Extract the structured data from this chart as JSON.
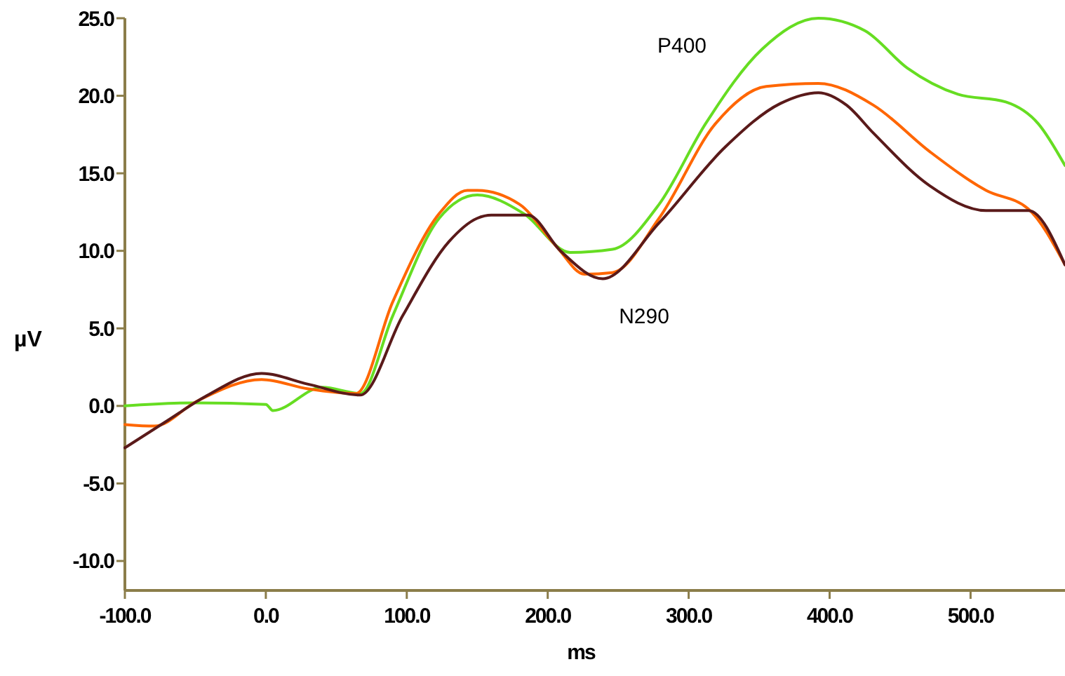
{
  "chart_data": {
    "type": "line",
    "xlabel": "ms",
    "ylabel": "µV",
    "xlim": [
      -100,
      567
    ],
    "ylim": [
      -11.9,
      25
    ],
    "xticks": [
      {
        "value": -100,
        "label": "-100.0"
      },
      {
        "value": 0,
        "label": "0.0"
      },
      {
        "value": 100,
        "label": "100.0"
      },
      {
        "value": 200,
        "label": "200.0"
      },
      {
        "value": 300,
        "label": "300.0"
      },
      {
        "value": 400,
        "label": "400.0"
      },
      {
        "value": 500,
        "label": "500.0"
      }
    ],
    "yticks": [
      {
        "value": -10,
        "label": "-10.0"
      },
      {
        "value": -5,
        "label": "-5.0"
      },
      {
        "value": 0,
        "label": "0.0"
      },
      {
        "value": 5,
        "label": "5.0"
      },
      {
        "value": 10,
        "label": "10.0"
      },
      {
        "value": 15,
        "label": "15.0"
      },
      {
        "value": 20,
        "label": "20.0"
      },
      {
        "value": 25,
        "label": "25.0"
      }
    ],
    "grid": false,
    "marker": "none",
    "line_style": "solid",
    "annotations": [
      "P400",
      "N290"
    ],
    "series": [
      {
        "color": "#66dd22",
        "x": [
          -100,
          -50,
          0,
          5,
          40,
          67,
          90,
          123,
          150,
          183,
          216,
          246,
          279,
          312,
          352,
          392,
          425,
          455,
          491,
          525,
          548,
          567
        ],
        "values": [
          0,
          0.2,
          0.1,
          -0.3,
          1.2,
          0.8,
          5.8,
          12.1,
          13.6,
          12.4,
          9.9,
          10.1,
          13,
          18.2,
          23,
          25,
          24.2,
          21.8,
          20.1,
          19.6,
          18.2,
          15.5
        ]
      },
      {
        "color": "#ff6600",
        "x": [
          -100,
          -79,
          -49,
          -3,
          30,
          64,
          90,
          123,
          143,
          150,
          180,
          206,
          226,
          246,
          279,
          319,
          355,
          392,
          431,
          471,
          511,
          541,
          567
        ],
        "values": [
          -1.2,
          -1.3,
          0.3,
          1.7,
          1.1,
          0.8,
          6.7,
          12.4,
          13.9,
          13.9,
          13,
          10.3,
          8.5,
          8.6,
          12.1,
          18.2,
          20.6,
          20.8,
          19.4,
          16.4,
          13.9,
          12.7,
          9.1
        ]
      },
      {
        "color": "#5a1a1a",
        "x": [
          -100,
          -69,
          -43,
          -3,
          30,
          67,
          97,
          130,
          150,
          160,
          186,
          209,
          239,
          279,
          326,
          365,
          392,
          412,
          431,
          471,
          511,
          541,
          567
        ],
        "values": [
          -2.7,
          -0.9,
          0.6,
          2.1,
          1.4,
          0.7,
          5.8,
          10.6,
          12.1,
          12.3,
          12.3,
          10,
          8.2,
          11.8,
          16.7,
          19.5,
          20.2,
          19.4,
          17.6,
          14.2,
          12.6,
          12.6,
          9.1
        ]
      }
    ]
  }
}
